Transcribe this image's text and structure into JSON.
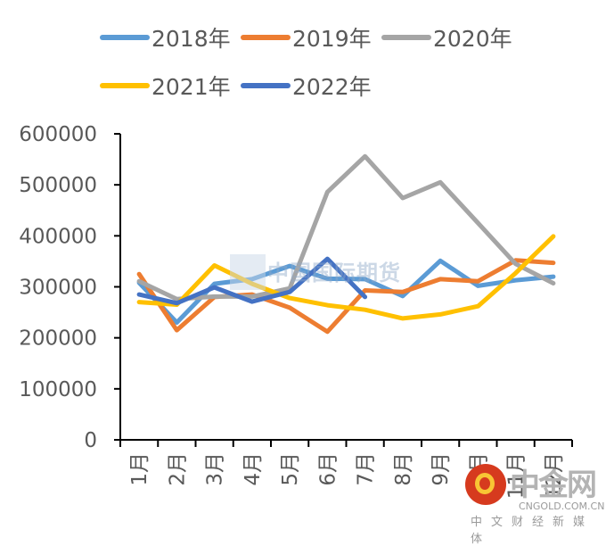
{
  "chart_data": {
    "type": "line",
    "title": "",
    "xlabel": "",
    "ylabel": "",
    "ylim": [
      0,
      600000
    ],
    "yticks": [
      "0",
      "100000",
      "200000",
      "300000",
      "400000",
      "500000",
      "600000"
    ],
    "categories": [
      "1月",
      "2月",
      "3月",
      "4月",
      "5月",
      "6月",
      "7月",
      "8月",
      "9月",
      "10月",
      "11月",
      "12月"
    ],
    "grid": false,
    "legend_position": "top",
    "series": [
      {
        "name": "2018年",
        "color": "#5b9bd5",
        "values": [
          308000,
          230000,
          306000,
          315000,
          341000,
          316000,
          315000,
          282000,
          351000,
          302000,
          313000,
          320000
        ]
      },
      {
        "name": "2019年",
        "color": "#ed7d31",
        "values": [
          325000,
          215000,
          280000,
          285000,
          259000,
          212000,
          293000,
          290000,
          315000,
          311000,
          352000,
          347000
        ]
      },
      {
        "name": "2020年",
        "color": "#a5a5a5",
        "values": [
          311000,
          276000,
          281000,
          281000,
          297000,
          486000,
          556000,
          474000,
          505000,
          425000,
          345000,
          307000
        ]
      },
      {
        "name": "2021年",
        "color": "#ffc000",
        "values": [
          270000,
          265000,
          342000,
          306000,
          278000,
          264000,
          255000,
          238000,
          246000,
          262000,
          327000,
          399000
        ]
      },
      {
        "name": "2022年",
        "color": "#4472c4",
        "values": [
          285000,
          268000,
          299000,
          271000,
          290000,
          355000,
          280000
        ]
      }
    ]
  },
  "watermarks": {
    "center_text": "中国国际期货",
    "logo_text": "中金网",
    "logo_url": "CNGOLD.COM.CN",
    "logo_sub": "中文财经新媒体"
  }
}
